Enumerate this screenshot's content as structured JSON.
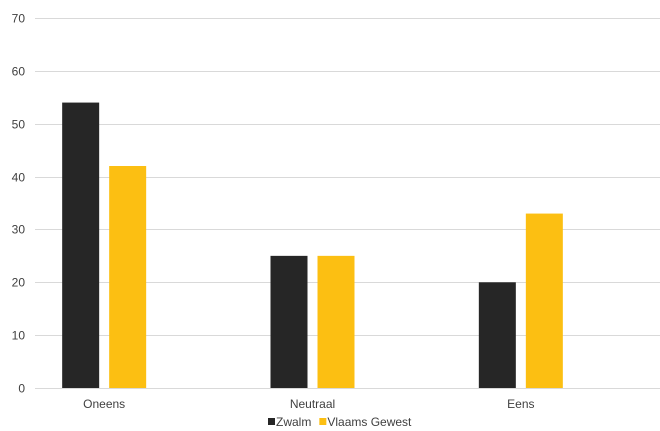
{
  "chart_data": {
    "type": "bar",
    "categories": [
      "Oneens",
      "Neutraal",
      "Eens"
    ],
    "series": [
      {
        "name": "Zwalm",
        "values": [
          54,
          25,
          20
        ],
        "color": "#262626"
      },
      {
        "name": "Vlaams Gewest",
        "values": [
          42,
          25,
          33
        ],
        "color": "#fcbf12"
      }
    ],
    "title": "",
    "xlabel": "",
    "ylabel": "",
    "ylim": [
      0,
      70
    ],
    "yticks": [
      "0",
      "10",
      "20",
      "30",
      "40",
      "50",
      "60",
      "70"
    ],
    "grid": true,
    "legend": "bottom"
  }
}
